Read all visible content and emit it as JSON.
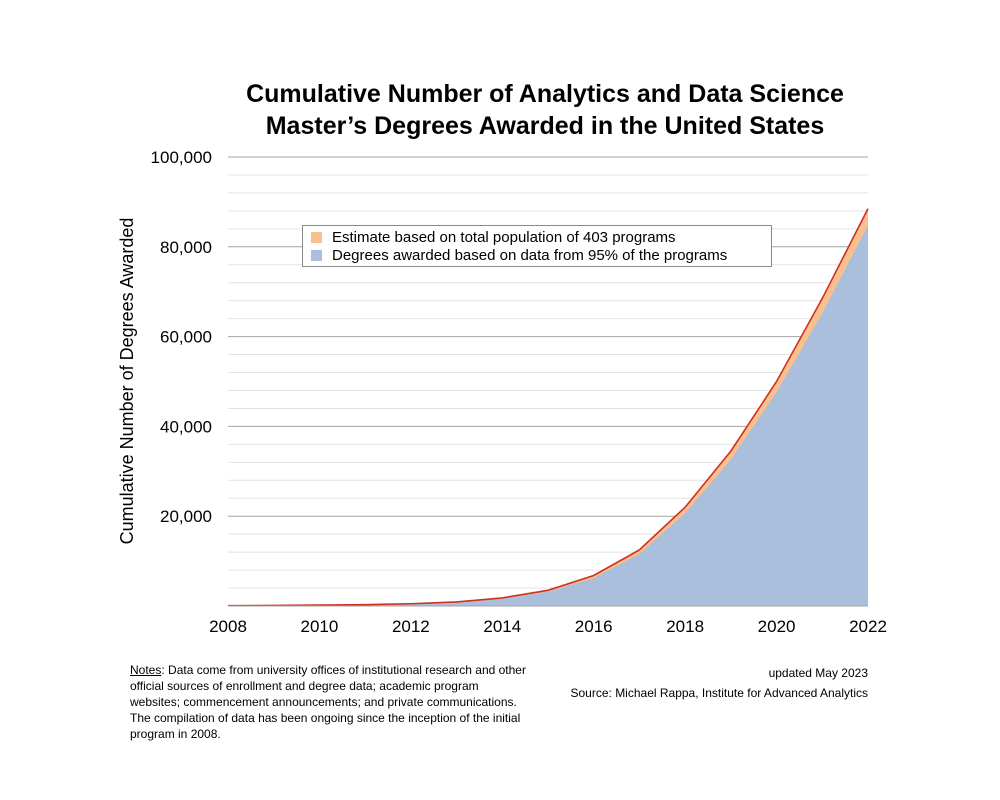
{
  "chart_data": {
    "type": "area",
    "title_line1": "Cumulative Number of Analytics and Data Science",
    "title_line2": "Master’s Degrees Awarded in the United States",
    "ylabel": "Cumulative Number of Degrees Awarded",
    "xlabel": "",
    "x": [
      2008,
      2009,
      2010,
      2011,
      2012,
      2013,
      2014,
      2015,
      2016,
      2017,
      2018,
      2019,
      2020,
      2021,
      2022
    ],
    "x_ticks": [
      "2008",
      "2010",
      "2012",
      "2014",
      "2016",
      "2018",
      "2020",
      "2022"
    ],
    "y_ticks": [
      "20,000",
      "40,000",
      "60,000",
      "80,000",
      "100,000"
    ],
    "xlim": [
      2008,
      2022
    ],
    "ylim": [
      0,
      100000
    ],
    "series": [
      {
        "name": "Estimate based on total population of 403 programs",
        "color": "#f9c08f",
        "values": [
          60,
          120,
          200,
          300,
          500,
          900,
          1800,
          3500,
          6800,
          12500,
          22000,
          34500,
          50000,
          68500,
          88500
        ]
      },
      {
        "name": "Degrees awarded based on data from 95% of the programs",
        "color": "#a9bfdc",
        "values": [
          50,
          100,
          180,
          280,
          450,
          800,
          1600,
          3200,
          6200,
          11600,
          20700,
          32600,
          47600,
          65200,
          84800
        ]
      }
    ],
    "estimate_line_color": "#d0301f",
    "grid": true,
    "legend_position": "top-left inside plot"
  },
  "notes": {
    "heading": "Notes",
    "text": ":  Data come from university offices of institutional research and other official sources of enrollment and degree data; academic program websites; commencement announcements; and private communications. The compilation of data has been ongoing since the inception of the initial program in 2008."
  },
  "updated": "updated May 2023",
  "source": "Source: Michael Rappa, Institute for Advanced Analytics"
}
